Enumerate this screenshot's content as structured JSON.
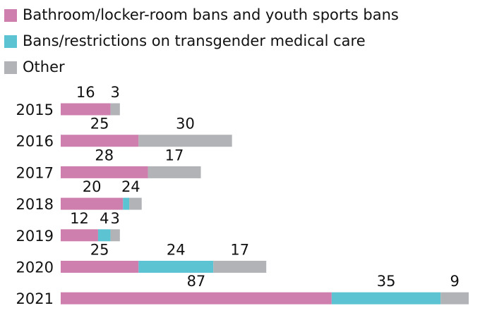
{
  "chart_data": {
    "type": "stacked-bar-horizontal",
    "categories": [
      "2015",
      "2016",
      "2017",
      "2018",
      "2019",
      "2020",
      "2021"
    ],
    "series": [
      {
        "name": "Bathroom/locker-room bans and youth sports bans",
        "color": "#cf7fae",
        "values": [
          16,
          25,
          28,
          20,
          12,
          25,
          87
        ]
      },
      {
        "name": "Bans/restrictions on transgender medical care",
        "color": "#5bc3d1",
        "values": [
          null,
          null,
          null,
          2,
          4,
          24,
          35
        ]
      },
      {
        "name": "Other",
        "color": "#b1b3b6",
        "values": [
          3,
          30,
          17,
          4,
          3,
          17,
          9
        ]
      }
    ],
    "legend": "top-left"
  }
}
